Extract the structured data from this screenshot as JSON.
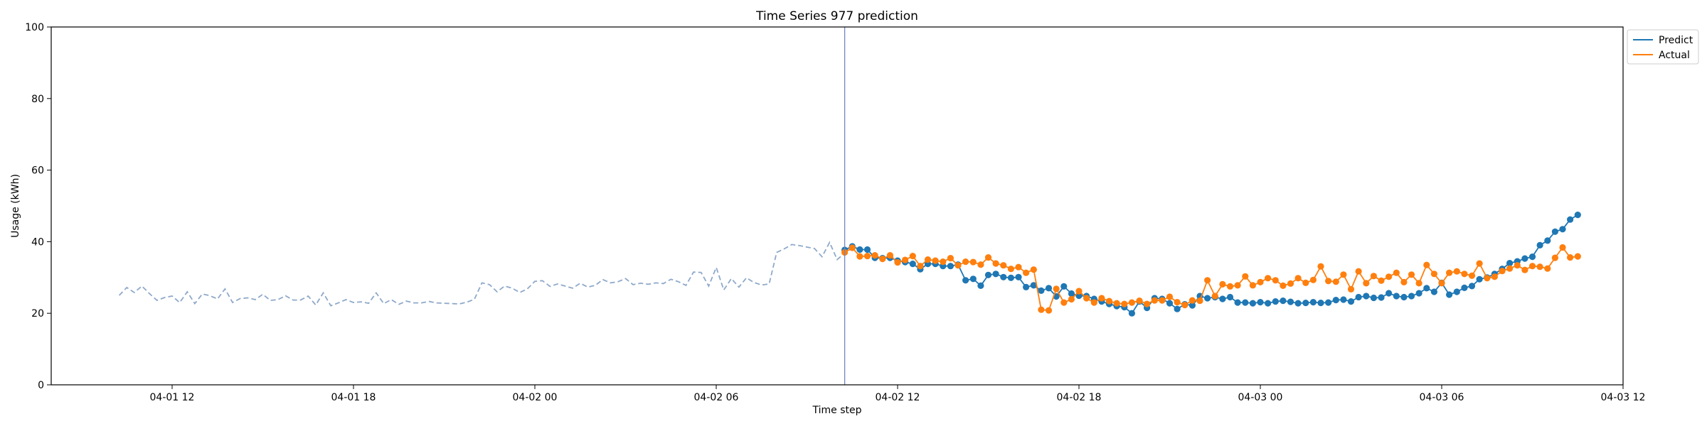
{
  "chart_data": {
    "type": "line",
    "title": "Time Series 977 prediction",
    "xlabel": "Time step",
    "ylabel": "Usage (kWh)",
    "ylim": [
      0,
      100
    ],
    "xlim": [
      "2024-04-01 08:00",
      "2024-04-03 12:00"
    ],
    "yticks": [
      0,
      20,
      40,
      60,
      80,
      100
    ],
    "xticks": [
      {
        "value": "2024-04-01 12:00",
        "label": "04-01 12"
      },
      {
        "value": "2024-04-01 18:00",
        "label": "04-01 18"
      },
      {
        "value": "2024-04-02 00:00",
        "label": "04-02 00"
      },
      {
        "value": "2024-04-02 06:00",
        "label": "04-02 06"
      },
      {
        "value": "2024-04-02 12:00",
        "label": "04-02 12"
      },
      {
        "value": "2024-04-02 18:00",
        "label": "04-02 18"
      },
      {
        "value": "2024-04-03 00:00",
        "label": "04-03 00"
      },
      {
        "value": "2024-04-03 06:00",
        "label": "04-03 06"
      },
      {
        "value": "2024-04-03 12:00",
        "label": "04-03 12"
      }
    ],
    "split_time": "2024-04-02 10:15",
    "legend_position": "upper right, outside plot",
    "grid": false,
    "history": {
      "start": "2024-04-01 10:15",
      "step_minutes": 15,
      "color": "#8fa9c9",
      "style": "dashed",
      "values": [
        25.0,
        27.2,
        25.8,
        27.6,
        25.5,
        23.6,
        24.4,
        24.8,
        23.0,
        26.0,
        22.7,
        25.4,
        24.9,
        24.0,
        26.8,
        23.0,
        24.1,
        24.3,
        23.8,
        25.3,
        23.6,
        23.8,
        24.9,
        23.7,
        23.7,
        24.8,
        22.3,
        25.7,
        22.1,
        22.9,
        23.8,
        23.0,
        23.2,
        22.8,
        25.7,
        22.7,
        23.8,
        22.5,
        23.4,
        22.9,
        22.9,
        23.3,
        22.9,
        22.8,
        22.7,
        22.6,
        23.1,
        23.9,
        28.5,
        28.0,
        26.0,
        27.6,
        27.0,
        25.8,
        26.8,
        28.9,
        29.1,
        27.5,
        28.2,
        27.6,
        27.0,
        28.4,
        27.3,
        27.8,
        29.4,
        28.5,
        28.8,
        29.7,
        28.0,
        28.4,
        28.1,
        28.5,
        28.3,
        29.5,
        28.8,
        27.8,
        31.5,
        31.4,
        27.6,
        32.8,
        26.5,
        29.7,
        27.3,
        29.9,
        28.6,
        27.9,
        28.2,
        37.0,
        38.0,
        39.2,
        38.9,
        38.5,
        38.1,
        35.8,
        39.8,
        35.0,
        36.8,
        38.2,
        37.7
      ]
    },
    "series": [
      {
        "name": "Predict",
        "color": "#1f77b4",
        "start": "2024-04-02 10:15",
        "step_minutes": 15,
        "values": [
          37.7,
          38.7,
          37.8,
          37.8,
          35.5,
          35.4,
          35.5,
          34.7,
          34.3,
          33.8,
          32.3,
          33.8,
          33.8,
          33.2,
          33.2,
          33.6,
          29.2,
          29.6,
          27.7,
          30.7,
          31.0,
          30.1,
          29.9,
          30.1,
          27.3,
          27.8,
          26.3,
          27.0,
          24.7,
          27.5,
          25.5,
          24.9,
          24.8,
          24.0,
          23.3,
          22.6,
          22.0,
          21.7,
          20.0,
          23.3,
          21.5,
          24.2,
          24.0,
          22.8,
          21.2,
          22.5,
          22.2,
          24.8,
          24.2,
          24.5,
          24.0,
          24.5,
          23.0,
          23.0,
          22.8,
          23.1,
          22.8,
          23.3,
          23.5,
          23.2,
          22.8,
          22.9,
          23.1,
          22.9,
          23.0,
          23.7,
          23.8,
          23.3,
          24.5,
          24.8,
          24.3,
          24.4,
          25.6,
          24.8,
          24.5,
          24.8,
          25.6,
          27.0,
          26.0,
          28.5,
          25.2,
          26.0,
          27.1,
          27.6,
          29.5,
          30.0,
          31.0,
          32.4,
          34.0,
          34.5,
          35.3,
          35.8,
          39.0,
          40.3,
          42.8,
          43.5,
          46.2,
          47.5
        ]
      },
      {
        "name": "Actual",
        "color": "#ff7f0e",
        "start": "2024-04-02 10:15",
        "step_minutes": 15,
        "values": [
          37.0,
          38.3,
          35.9,
          36.0,
          36.2,
          35.2,
          36.2,
          34.2,
          34.9,
          36.0,
          33.2,
          35.0,
          34.7,
          34.4,
          35.4,
          33.4,
          34.4,
          34.3,
          33.6,
          35.6,
          33.9,
          33.4,
          32.4,
          32.9,
          31.3,
          32.2,
          21.0,
          20.8,
          26.8,
          23.0,
          23.9,
          26.2,
          24.2,
          23.0,
          24.2,
          23.4,
          22.8,
          22.6,
          23.0,
          23.5,
          22.6,
          23.6,
          23.6,
          24.6,
          23.1,
          22.3,
          23.6,
          23.5,
          29.2,
          24.8,
          28.1,
          27.5,
          27.8,
          30.3,
          27.8,
          28.7,
          29.8,
          29.2,
          27.7,
          28.3,
          29.8,
          28.5,
          29.3,
          33.1,
          29.0,
          28.8,
          30.8,
          26.7,
          31.7,
          28.4,
          30.4,
          29.1,
          30.2,
          31.3,
          28.7,
          30.8,
          28.4,
          33.5,
          31.0,
          28.4,
          31.3,
          31.7,
          31.0,
          30.5,
          33.9,
          29.8,
          30.2,
          31.8,
          32.5,
          33.4,
          32.1,
          33.2,
          33.0,
          32.5,
          35.5,
          38.4,
          35.6,
          35.9
        ]
      }
    ]
  }
}
